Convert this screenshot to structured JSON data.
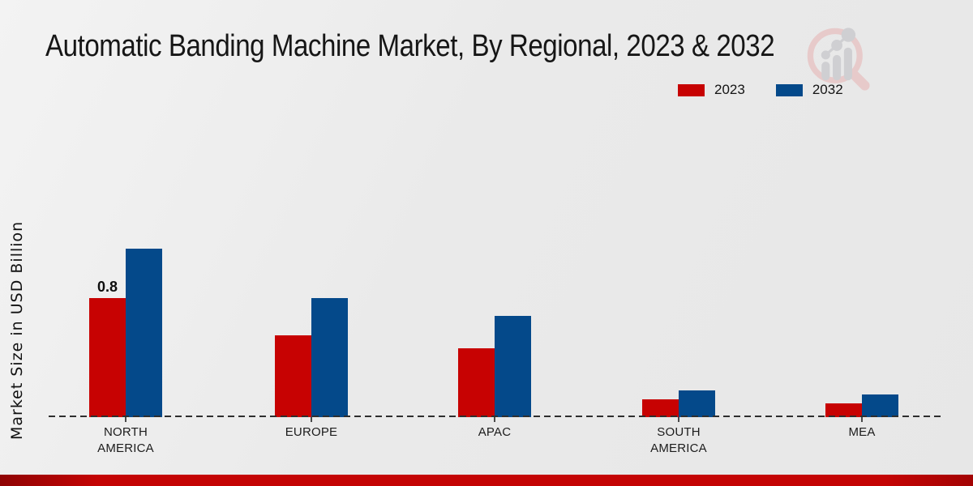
{
  "chart_data": {
    "type": "bar",
    "title": "Automatic Banding Machine Market, By Regional, 2023 & 2032",
    "xlabel": "",
    "ylabel": "Market Size in USD Billion",
    "categories": [
      "NORTH AMERICA",
      "EUROPE",
      "APAC",
      "SOUTH AMERICA",
      "MEA"
    ],
    "series": [
      {
        "name": "2023",
        "color": "#c70202",
        "values": [
          0.8,
          0.55,
          0.46,
          0.12,
          0.09
        ]
      },
      {
        "name": "2032",
        "color": "#04498a",
        "values": [
          1.13,
          0.8,
          0.68,
          0.18,
          0.15
        ]
      }
    ],
    "bar_labels": [
      {
        "series_index": 0,
        "category_index": 0,
        "text": "0.8"
      }
    ],
    "ylim": [
      0,
      1.2
    ],
    "grid": false,
    "legend_position": "top-right",
    "baseline_style": "dashed"
  },
  "icons": {
    "watermark": "bar-chart-magnifier-logo"
  },
  "colors": {
    "accent_strip": "#c40404",
    "background": "#eaeaea",
    "axis": "#2e2e2e"
  }
}
